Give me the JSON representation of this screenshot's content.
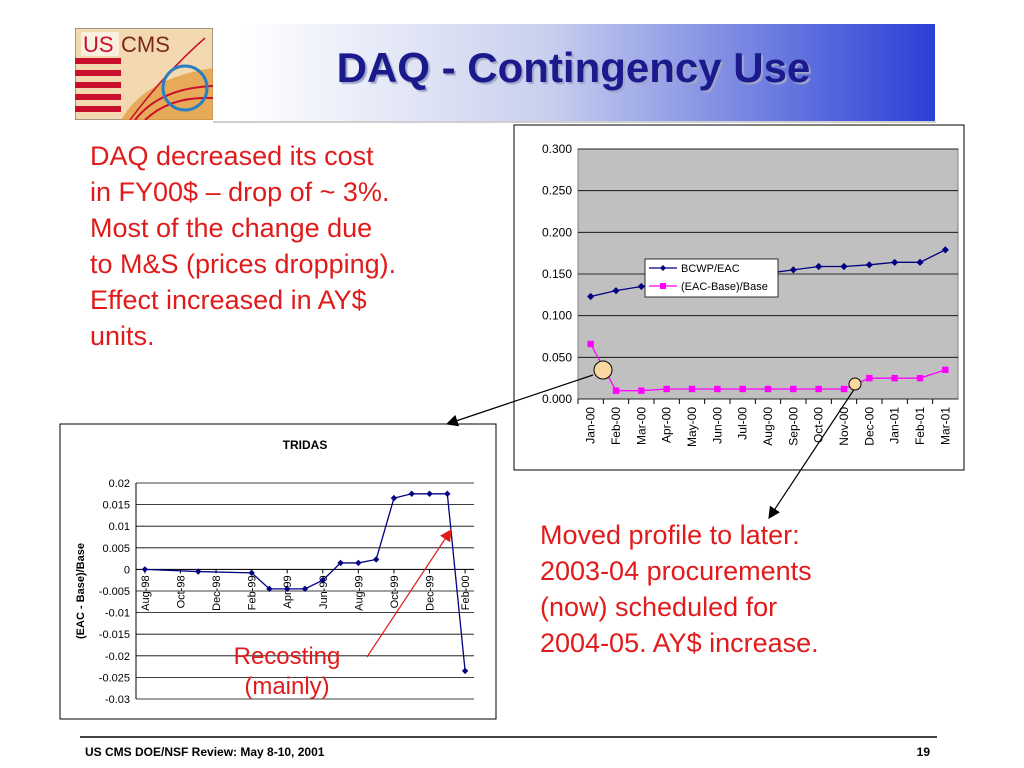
{
  "slide": {
    "title": "DAQ - Contingency Use",
    "logo_text": [
      "US",
      "CMS"
    ],
    "left_text": [
      "DAQ decreased its cost",
      "in FY00$ – drop of ~ 3%.",
      "Most of the change due",
      "to M&S (prices dropping).",
      "Effect increased in AY$",
      "units."
    ],
    "right_text": [
      "Moved profile to later:",
      "2003-04 procurements",
      "(now) scheduled for",
      "2004-05.  AY$ increase."
    ],
    "annotation": [
      "Recosting",
      "(mainly)"
    ],
    "footer": "US CMS DOE/NSF Review:  May 8-10, 2001",
    "page_number": "19"
  },
  "colors": {
    "title": "#1a1a8c",
    "red_text": "#e01b1b",
    "navy_series": "#000080",
    "magenta_series": "#ff00ff",
    "plot_gray": "#c0c0c0",
    "header_blue": "#2a3fd6",
    "highlight_circle": "#f8d8a0"
  },
  "chart_data": [
    {
      "type": "line",
      "title": "",
      "xlabel": "",
      "ylabel": "",
      "categories": [
        "Jan-00",
        "Feb-00",
        "Mar-00",
        "Apr-00",
        "May-00",
        "Jun-00",
        "Jul-00",
        "Aug-00",
        "Sep-00",
        "Oct-00",
        "Nov-00",
        "Dec-00",
        "Jan-01",
        "Feb-01",
        "Mar-01"
      ],
      "yticks": [
        "0.000",
        "0.050",
        "0.100",
        "0.150",
        "0.200",
        "0.250",
        "0.300"
      ],
      "ylim": [
        0,
        0.3
      ],
      "grid": true,
      "legend": "center",
      "series": [
        {
          "name": "BCWP/EAC",
          "color": "#000080",
          "marker": "diamond",
          "values": [
            0.123,
            0.13,
            0.135,
            0.14,
            0.144,
            0.147,
            0.149,
            0.151,
            0.155,
            0.159,
            0.159,
            0.161,
            0.164,
            0.164,
            0.179
          ]
        },
        {
          "name": "(EAC-Base)/Base",
          "color": "#ff00ff",
          "marker": "square",
          "values": [
            0.066,
            0.01,
            0.01,
            0.012,
            0.012,
            0.012,
            0.012,
            0.012,
            0.012,
            0.012,
            0.012,
            0.025,
            0.025,
            0.025,
            0.035
          ]
        }
      ]
    },
    {
      "type": "line",
      "title": "TRIDAS",
      "xlabel": "",
      "ylabel": "(EAC - Base)/Base",
      "categories": [
        "Aug-98",
        "Oct-98",
        "Dec-98",
        "Feb-99",
        "Apr-99",
        "Jun-99",
        "Aug-99",
        "Oct-99",
        "Dec-99",
        "Feb-00"
      ],
      "yticks": [
        "0.02",
        "0.015",
        "0.01",
        "0.005",
        "0",
        "-0.005",
        "-0.01",
        "-0.015",
        "-0.02",
        "-0.025",
        "-0.03"
      ],
      "ylim": [
        -0.03,
        0.02
      ],
      "grid": true,
      "series": [
        {
          "name": "",
          "color": "#000080",
          "marker": "diamond",
          "x": [
            0,
            3,
            6,
            7,
            8,
            9,
            10,
            11,
            12,
            13,
            14,
            15,
            16,
            17,
            18
          ],
          "values": [
            0.0,
            -0.0005,
            -0.0008,
            -0.0045,
            -0.0045,
            -0.0045,
            -0.0025,
            0.0015,
            0.0015,
            0.0023,
            0.0165,
            0.0175,
            0.0175,
            0.0175,
            -0.0235
          ]
        }
      ]
    }
  ]
}
